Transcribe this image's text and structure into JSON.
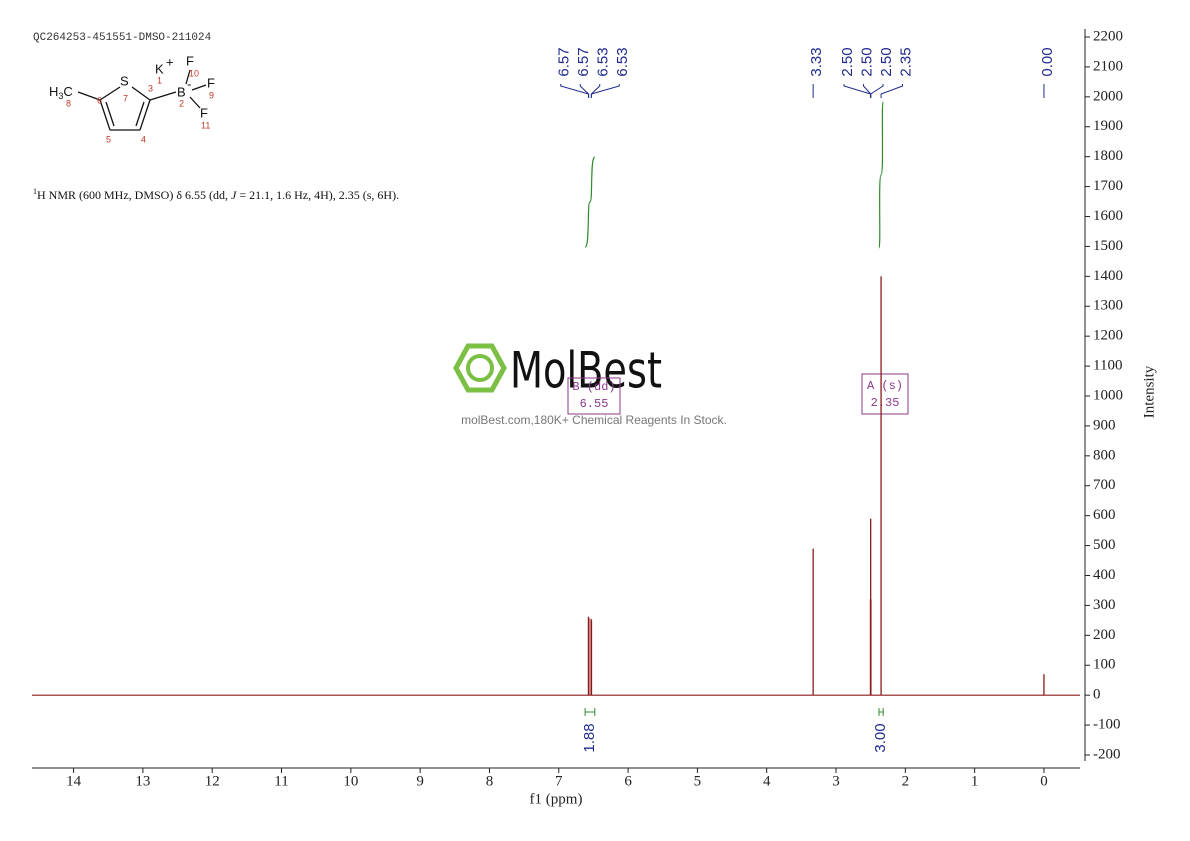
{
  "header": "QC264253-451551-DMSO-211024",
  "structure": [
    "S",
    "K",
    "+",
    "F",
    "10",
    "F",
    "9",
    "F",
    "11",
    "B",
    "-",
    "2",
    "3",
    "1",
    "7",
    "6",
    "4",
    "5",
    "H",
    "3",
    "C",
    "8"
  ],
  "description": [
    "1",
    "H NMR (600 MHz, DMSO) δ 6.55 (dd, ",
    "J",
    " = 21.1, 1.6 Hz, 4H), 2.35 (s, 6H)."
  ],
  "watermark": {
    "logo": "MolBest",
    "tagline": "molBest.com,180K+ Chemical Reagents In Stock."
  },
  "multiplets": [
    {
      "name": "B (dd)",
      "shift": "6.55"
    },
    {
      "name": "A (s)",
      "shift": "2.35"
    }
  ],
  "chart_data": {
    "type": "nmr",
    "x_label": "f1 (ppm)",
    "y_label": "Intensity",
    "xlim": [
      14.6,
      -0.52
    ],
    "ylim": [
      -200,
      2200
    ],
    "xticks": [
      14,
      13,
      12,
      11,
      10,
      9,
      8,
      7,
      6,
      5,
      4,
      3,
      2,
      1,
      0
    ],
    "yticks": [
      -200,
      -100,
      0,
      100,
      200,
      300,
      400,
      500,
      600,
      700,
      800,
      900,
      1000,
      1100,
      1200,
      1300,
      1400,
      1500,
      1600,
      1700,
      1800,
      1900,
      2000,
      2100,
      2200
    ],
    "color": "#8b1a1a",
    "x": [
      6.572,
      6.566,
      6.534,
      6.528,
      3.33,
      2.503,
      2.5,
      2.497,
      2.35,
      0.0
    ],
    "values": [
      262,
      258,
      255,
      250,
      490,
      320,
      590,
      320,
      1400,
      70
    ],
    "peak_labels": [
      [
        {
          "value": 6.57,
          "label": "6.57"
        },
        {
          "value": 6.57,
          "label": "6.57"
        },
        {
          "value": 6.53,
          "label": "6.53"
        },
        {
          "value": 6.53,
          "label": "6.53"
        }
      ],
      [
        {
          "value": 3.33,
          "label": "3.33"
        }
      ],
      [
        {
          "value": 2.5,
          "label": "2.50"
        },
        {
          "value": 2.5,
          "label": "2.50"
        },
        {
          "value": 2.5,
          "label": "2.50"
        },
        {
          "value": 2.35,
          "label": "2.35"
        }
      ],
      [
        {
          "value": 0,
          "label": "0.00"
        }
      ]
    ],
    "integrals": [
      {
        "range": [
          6.62,
          6.48
        ],
        "label": "1.88"
      },
      {
        "range": [
          2.38,
          2.32
        ],
        "label": "3.00"
      }
    ],
    "integral_color": "#2e8b2e"
  }
}
